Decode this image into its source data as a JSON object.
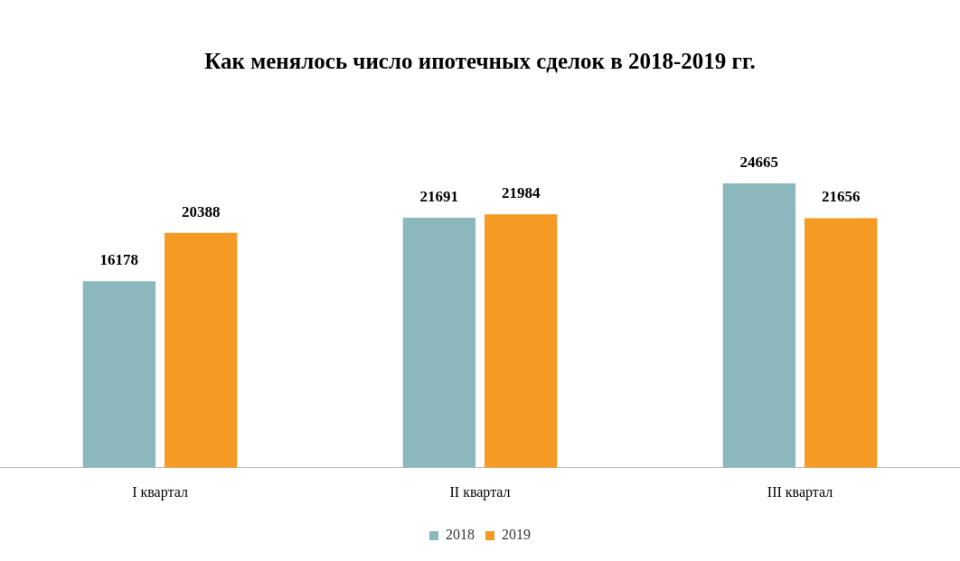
{
  "chart_data": {
    "type": "bar",
    "title": "Как менялось число ипотечных сделок в 2018-2019 гг.",
    "categories": [
      "I квартал",
      "II квартал",
      "III квартал"
    ],
    "series": [
      {
        "name": "2018",
        "color": "#8ab8bc",
        "values": [
          16178,
          21691,
          24665
        ]
      },
      {
        "name": "2019",
        "color": "#f59b23",
        "values": [
          20388,
          21984,
          21656
        ]
      }
    ],
    "data_labels": true,
    "legend": "bottom",
    "grid": false,
    "tick_labels": "x"
  }
}
